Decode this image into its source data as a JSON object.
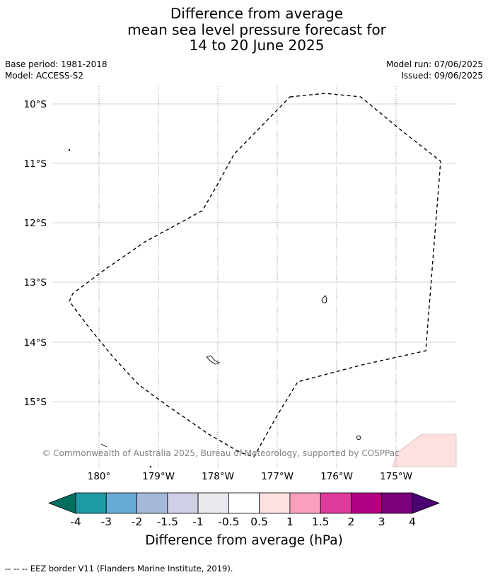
{
  "title_lines": [
    "Difference from average",
    "mean sea level pressure forecast for",
    "14 to 20 June 2025"
  ],
  "base_period": "Base period: 1981-2018",
  "model": "Model: ACCESS-S2",
  "model_run": "Model run: 07/06/2025",
  "issued": "Issued: 09/06/2025",
  "map": {
    "lat_labels": [
      "10°S",
      "11°S",
      "12°S",
      "13°S",
      "14°S",
      "15°S"
    ],
    "lon_labels": [
      "180°",
      "179°W",
      "178°W",
      "177°W",
      "176°W",
      "175°W"
    ],
    "copyright": "© Commonwealth of Australia 2025, Bureau of Meteorology, supported by COSPPac",
    "anomaly_patch_value_hPa": "0.5 to 1"
  },
  "colorbar": {
    "label": "Difference from average (hPa)",
    "ticks": [
      "-4",
      "-3",
      "-2",
      "-1.5",
      "-1",
      "-0.5",
      "0.5",
      "1",
      "1.5",
      "2",
      "3",
      "4"
    ],
    "colors": [
      "#006e5e",
      "#1e9aa6",
      "#66a9d2",
      "#a6b8da",
      "#cfcfe5",
      "#e9e8ee",
      "#ffffff",
      "#fee0e0",
      "#f9a0bd",
      "#de3a9c",
      "#b10082",
      "#7a007c",
      "#4a0070"
    ]
  },
  "footnote": "--  --  -- EEZ border V11 (Flanders Marine Institute, 2019)."
}
